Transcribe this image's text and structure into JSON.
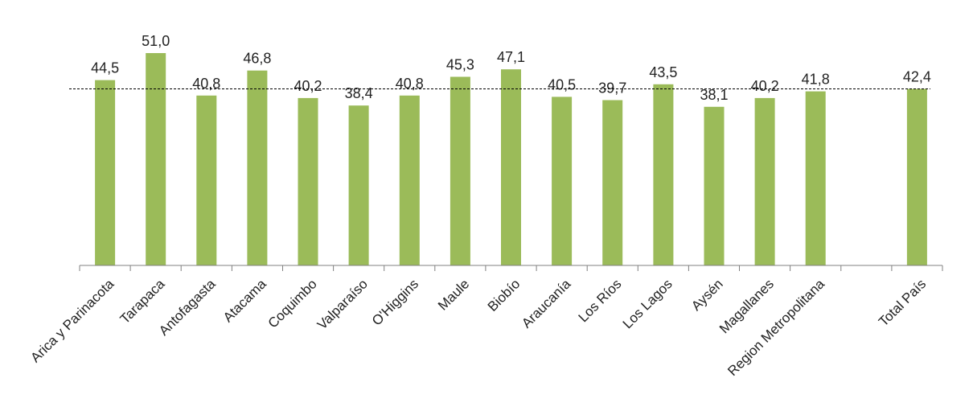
{
  "chart_data": {
    "type": "bar",
    "title": "",
    "xlabel": "",
    "ylabel": "",
    "categories": [
      "Arica y Parinacota",
      "Tarapaca",
      "Antofagasta",
      "Atacama",
      "Coquimbo",
      "Valparaíso",
      "O'Higgins",
      "Maule",
      "Biobío",
      "Araucanía",
      "Los Ríos",
      "Los Lagos",
      "Aysén",
      "Magallanes",
      "Region Metropolitana",
      "",
      "Total País"
    ],
    "values": [
      44.5,
      51.0,
      40.8,
      46.8,
      40.2,
      38.4,
      40.8,
      45.3,
      47.1,
      40.5,
      39.7,
      43.5,
      38.1,
      40.2,
      41.8,
      null,
      42.4
    ],
    "data_labels": [
      "44,5",
      "51,0",
      "40,8",
      "46,8",
      "40,2",
      "38,4",
      "40,8",
      "45,3",
      "47,1",
      "40,5",
      "39,7",
      "43,5",
      "38,1",
      "40,2",
      "41,8",
      "",
      "42,4"
    ],
    "reference_line": 42.4,
    "ylim": [
      0,
      51.0
    ],
    "grid": false,
    "legend": "none",
    "bar_color": "#9bbb59"
  }
}
